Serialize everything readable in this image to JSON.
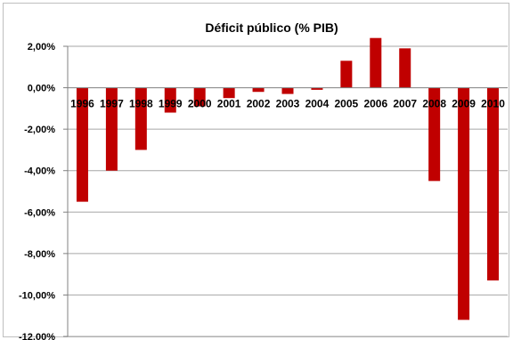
{
  "chart_data": {
    "type": "bar",
    "title": "Déficit público  (% PIB)",
    "xlabel": "",
    "ylabel": "",
    "categories": [
      "1996",
      "1997",
      "1998",
      "1999",
      "2000",
      "2001",
      "2002",
      "2003",
      "2004",
      "2005",
      "2006",
      "2007",
      "2008",
      "2009",
      "2010"
    ],
    "values": [
      -5.5,
      -4.0,
      -3.0,
      -1.2,
      -0.9,
      -0.5,
      -0.2,
      -0.3,
      -0.1,
      1.3,
      2.4,
      1.9,
      -4.5,
      -11.2,
      -9.3
    ],
    "ylim": [
      -12,
      2
    ],
    "yticks": [
      2,
      0,
      -2,
      -4,
      -6,
      -8,
      -10,
      -12
    ],
    "ytick_labels": [
      "2,00%",
      "0,00%",
      "-2,00%",
      "-4,00%",
      "-6,00%",
      "-8,00%",
      "-10,00%",
      "-12,00%"
    ],
    "grid": true,
    "legend": "none",
    "bar_color": "#c00000"
  }
}
